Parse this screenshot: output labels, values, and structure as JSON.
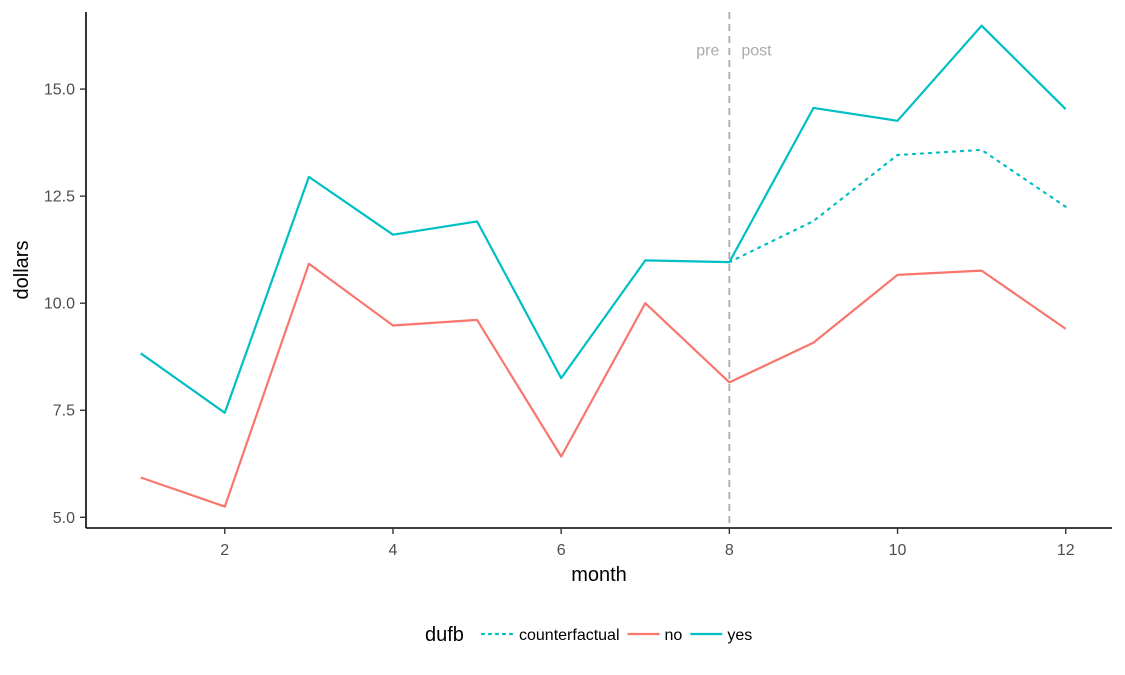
{
  "chart_data": {
    "type": "line",
    "xlabel": "month",
    "ylabel": "dollars",
    "xlim": [
      0.35,
      12.55
    ],
    "ylim": [
      4.75,
      16.8
    ],
    "x_ticks": [
      2,
      4,
      6,
      8,
      10,
      12
    ],
    "y_ticks": [
      5.0,
      7.5,
      10.0,
      12.5,
      15.0
    ],
    "y_tick_labels": [
      "5.0",
      "7.5",
      "10.0",
      "12.5",
      "15.0"
    ],
    "grid": false,
    "legend_position": "bottom",
    "legend_title": "dufb",
    "vline": {
      "x": 8,
      "color": "#aaaaaa",
      "style": "dashed"
    },
    "annotations": [
      {
        "text": "pre",
        "x": 8,
        "y": 15.9,
        "side": "left"
      },
      {
        "text": "post",
        "x": 8,
        "y": 15.9,
        "side": "right"
      }
    ],
    "series": [
      {
        "name": "no",
        "color": "#F8766D",
        "dash": "solid",
        "x": [
          1,
          2,
          3,
          4,
          5,
          6,
          7,
          8,
          9,
          10,
          11,
          12
        ],
        "values": [
          5.93,
          5.25,
          10.92,
          9.48,
          9.61,
          6.42,
          10.0,
          8.15,
          9.08,
          10.66,
          10.76,
          9.4
        ]
      },
      {
        "name": "yes",
        "color": "#00BFC4",
        "dash": "solid",
        "x": [
          1,
          2,
          3,
          4,
          5,
          6,
          7,
          8,
          9,
          10,
          11,
          12
        ],
        "values": [
          8.83,
          7.44,
          12.95,
          11.6,
          11.91,
          8.25,
          11.0,
          10.96,
          14.56,
          14.26,
          16.48,
          14.53
        ]
      },
      {
        "name": "counterfactual",
        "color": "#00BFC4",
        "dash": "dotted",
        "x": [
          8,
          9,
          10,
          11,
          12
        ],
        "values": [
          10.96,
          11.92,
          13.46,
          13.58,
          12.25
        ]
      }
    ],
    "legend_order": [
      "counterfactual",
      "no",
      "yes"
    ]
  }
}
